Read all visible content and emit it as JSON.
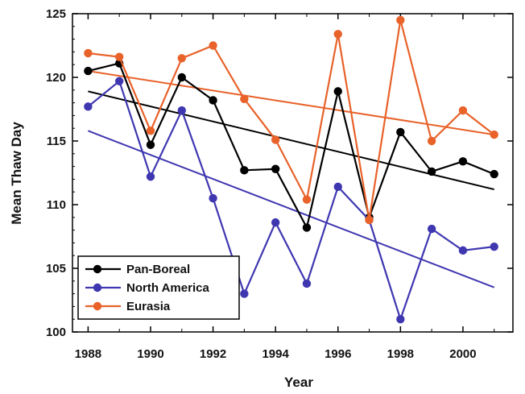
{
  "chart_data": {
    "type": "line",
    "title": "",
    "xlabel": "Year",
    "ylabel": "Mean Thaw Day",
    "xlim": [
      1987.5,
      2001.6
    ],
    "ylim": [
      100,
      125
    ],
    "x_ticks": [
      1988,
      1990,
      1992,
      1994,
      1996,
      1998,
      2000
    ],
    "x_minor_ticks": [
      1989,
      1991,
      1993,
      1995,
      1997,
      1999,
      2001
    ],
    "y_ticks": [
      100,
      105,
      110,
      115,
      120,
      125
    ],
    "grid": false,
    "legend_position": "bottom-left",
    "x": [
      1988,
      1989,
      1990,
      1991,
      1992,
      1993,
      1994,
      1995,
      1996,
      1997,
      1998,
      1999,
      2000,
      2001
    ],
    "series": [
      {
        "name": "Pan-Boreal",
        "color": "#000000",
        "values": [
          120.5,
          121.1,
          114.7,
          120.0,
          118.2,
          112.7,
          112.8,
          108.2,
          118.9,
          109.0,
          115.7,
          112.6,
          113.4,
          112.4
        ],
        "trend": [
          118.9,
          111.2
        ]
      },
      {
        "name": "North America",
        "color": "#3f37b0",
        "values": [
          117.7,
          119.7,
          112.2,
          117.4,
          110.5,
          103.0,
          108.6,
          103.8,
          111.4,
          108.8,
          101.0,
          108.1,
          106.4,
          106.7
        ],
        "trend": [
          115.8,
          103.5
        ]
      },
      {
        "name": "Eurasia",
        "color": "#e8622a",
        "values": [
          121.9,
          121.6,
          115.8,
          121.5,
          122.5,
          118.3,
          115.1,
          110.4,
          123.4,
          108.8,
          124.5,
          115.0,
          117.4,
          115.5
        ],
        "trend": [
          120.5,
          115.5
        ]
      }
    ]
  }
}
